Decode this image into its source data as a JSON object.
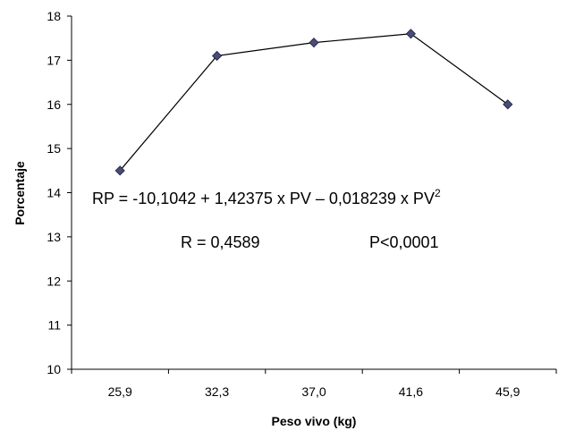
{
  "chart_data": {
    "type": "line",
    "categories": [
      "25,9",
      "32,3",
      "37,0",
      "41,6",
      "45,9"
    ],
    "series": [
      {
        "values": [
          14.5,
          17.1,
          17.4,
          17.6,
          16.0
        ],
        "color": "#000000",
        "marker_color": "#4b4b7a"
      }
    ],
    "xlabel": "Peso vivo (kg)",
    "ylabel": "Porcentaje",
    "ylim": [
      10,
      18
    ],
    "yticks": [
      10,
      11,
      12,
      13,
      14,
      15,
      16,
      17,
      18
    ],
    "grid": false,
    "annotations": {
      "equation": "RP = -10,1042 + 1,42375 x PV – 0,018239 x PV",
      "equation_superscript": "2",
      "r_value": "R = 0,4589",
      "p_value": "P<0,0001"
    }
  }
}
